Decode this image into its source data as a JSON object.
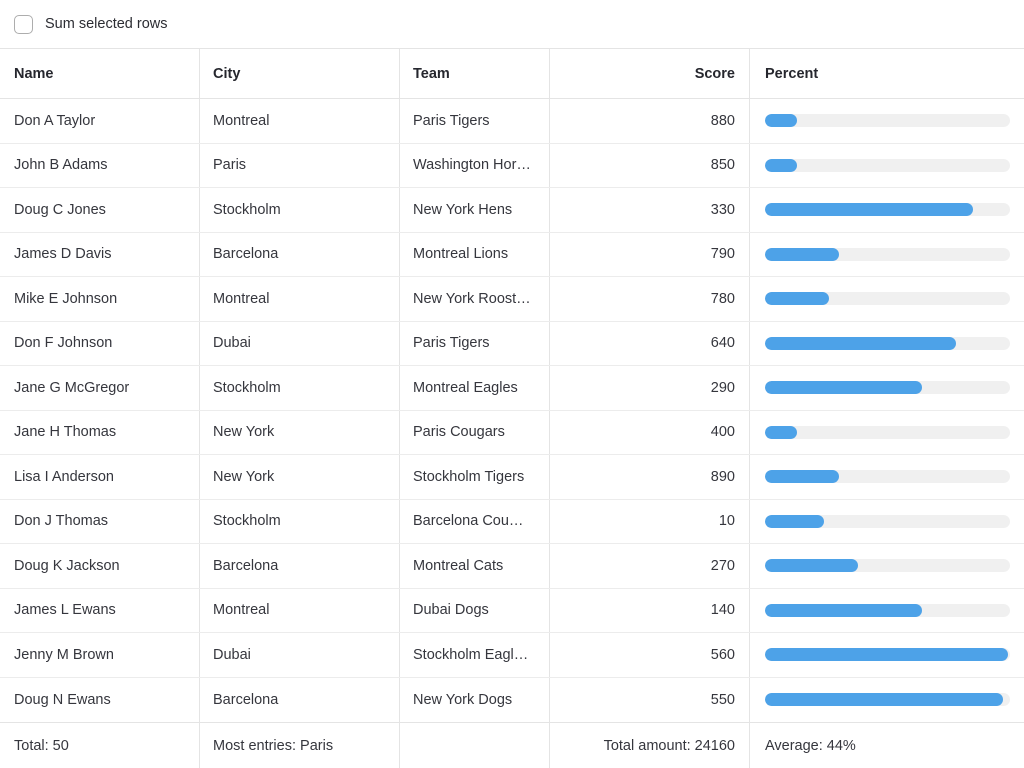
{
  "toolbar": {
    "sum_selected_label": "Sum selected rows",
    "checkbox_checked": false
  },
  "table": {
    "columns": [
      {
        "label": "Name"
      },
      {
        "label": "City"
      },
      {
        "label": "Team"
      },
      {
        "label": "Score"
      },
      {
        "label": "Percent"
      }
    ],
    "rows": [
      {
        "name": "Don A Taylor",
        "city": "Montreal",
        "team": "Paris Tigers",
        "score": "880",
        "percent": 13
      },
      {
        "name": "John B Adams",
        "city": "Paris",
        "team": "Washington Hor…",
        "score": "850",
        "percent": 13
      },
      {
        "name": "Doug C Jones",
        "city": "Stockholm",
        "team": "New York Hens",
        "score": "330",
        "percent": 85
      },
      {
        "name": "James D Davis",
        "city": "Barcelona",
        "team": "Montreal Lions",
        "score": "790",
        "percent": 30
      },
      {
        "name": "Mike E Johnson",
        "city": "Montreal",
        "team": "New York Roost…",
        "score": "780",
        "percent": 26
      },
      {
        "name": "Don F Johnson",
        "city": "Dubai",
        "team": "Paris Tigers",
        "score": "640",
        "percent": 78
      },
      {
        "name": "Jane G McGregor",
        "city": "Stockholm",
        "team": "Montreal Eagles",
        "score": "290",
        "percent": 64
      },
      {
        "name": "Jane H Thomas",
        "city": "New York",
        "team": "Paris Cougars",
        "score": "400",
        "percent": 13
      },
      {
        "name": "Lisa I Anderson",
        "city": "New York",
        "team": "Stockholm Tigers",
        "score": "890",
        "percent": 30
      },
      {
        "name": "Don J Thomas",
        "city": "Stockholm",
        "team": "Barcelona Cou…",
        "score": "10",
        "percent": 24
      },
      {
        "name": "Doug K Jackson",
        "city": "Barcelona",
        "team": "Montreal Cats",
        "score": "270",
        "percent": 38
      },
      {
        "name": "James L Ewans",
        "city": "Montreal",
        "team": "Dubai Dogs",
        "score": "140",
        "percent": 64
      },
      {
        "name": "Jenny M Brown",
        "city": "Dubai",
        "team": "Stockholm Eagl…",
        "score": "560",
        "percent": 99
      },
      {
        "name": "Doug N Ewans",
        "city": "Barcelona",
        "team": "New York Dogs",
        "score": "550",
        "percent": 97
      }
    ],
    "footer": {
      "total": "Total: 50",
      "most_entries": "Most entries: Paris",
      "team": "",
      "total_amount": "Total amount: 24160",
      "average": "Average: 44%"
    }
  },
  "colors": {
    "bar_fill": "#4da2e8",
    "bar_track": "#f0f0f0"
  }
}
